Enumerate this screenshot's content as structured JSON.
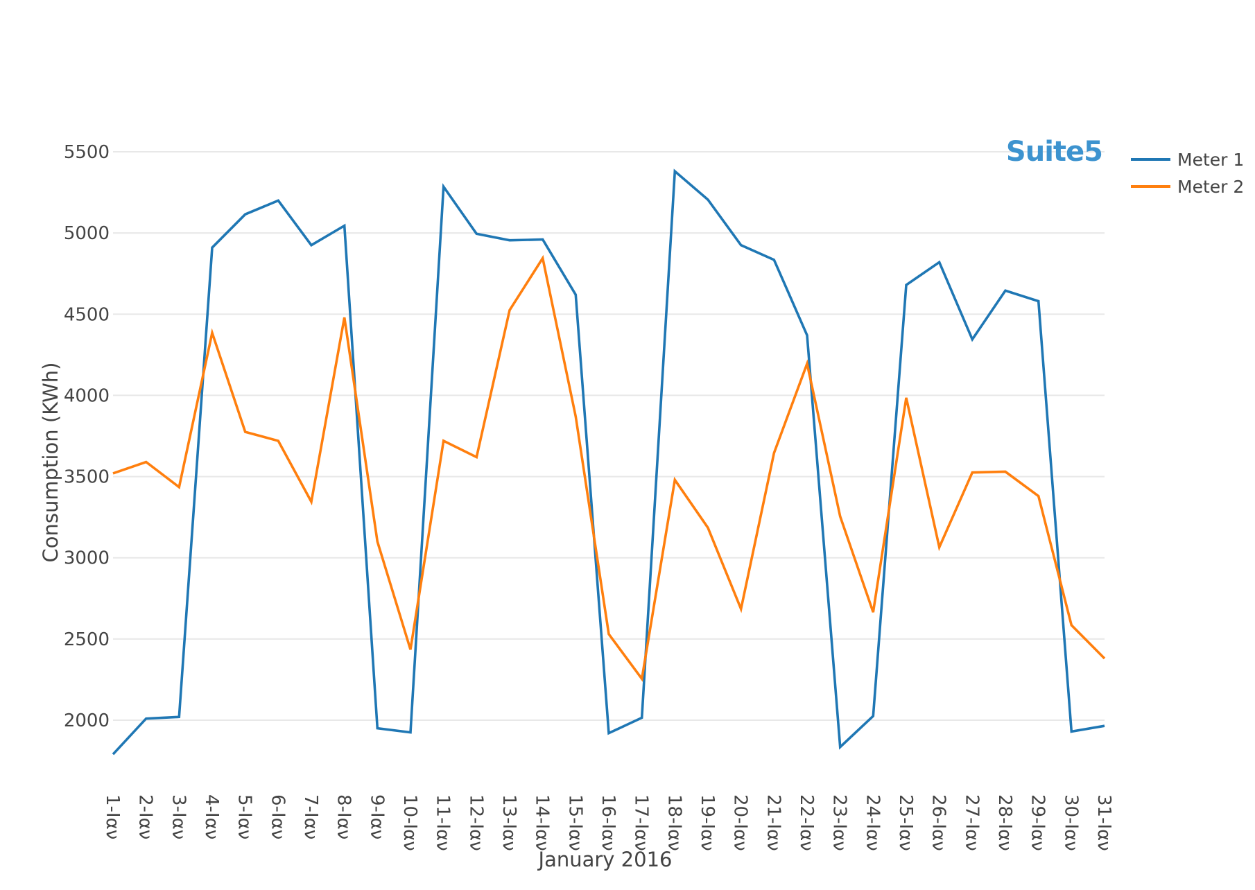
{
  "logo": {
    "text": "Suite5"
  },
  "chart_data": {
    "type": "line",
    "title": "",
    "xlabel": "January 2016",
    "ylabel": "Consumption (KWh)",
    "categories": [
      "1-Ιαν",
      "2-Ιαν",
      "3-Ιαν",
      "4-Ιαν",
      "5-Ιαν",
      "6-Ιαν",
      "7-Ιαν",
      "8-Ιαν",
      "9-Ιαν",
      "10-Ιαν",
      "11-Ιαν",
      "12-Ιαν",
      "13-Ιαν",
      "14-Ιαν",
      "15-Ιαν",
      "16-Ιαν",
      "17-Ιαν",
      "18-Ιαν",
      "19-Ιαν",
      "20-Ιαν",
      "21-Ιαν",
      "22-Ιαν",
      "23-Ιαν",
      "24-Ιαν",
      "25-Ιαν",
      "26-Ιαν",
      "27-Ιαν",
      "28-Ιαν",
      "29-Ιαν",
      "30-Ιαν",
      "31-Ιαν"
    ],
    "yticks": [
      2000,
      2500,
      3000,
      3500,
      4000,
      4500,
      5000,
      5500
    ],
    "ylim": [
      1720,
      5520
    ],
    "grid": true,
    "legend_position": "top-right",
    "series": [
      {
        "name": "Meter 1",
        "color": "#1f77b4",
        "values": [
          1790,
          2010,
          2020,
          4910,
          5115,
          5200,
          4925,
          5045,
          1950,
          1925,
          5285,
          4995,
          4955,
          4960,
          4620,
          1920,
          2015,
          5380,
          5205,
          4925,
          4835,
          4370,
          1835,
          2025,
          4680,
          4820,
          4345,
          4645,
          4580,
          1930,
          1965
        ]
      },
      {
        "name": "Meter 2",
        "color": "#ff7f0e",
        "values": [
          3520,
          3590,
          3435,
          4385,
          3775,
          3720,
          3345,
          4480,
          3100,
          2435,
          3720,
          3620,
          4525,
          4845,
          3870,
          2530,
          2255,
          3480,
          3185,
          2685,
          3645,
          4195,
          3255,
          2665,
          3985,
          3065,
          3525,
          3530,
          3380,
          2585,
          2380
        ]
      }
    ]
  }
}
